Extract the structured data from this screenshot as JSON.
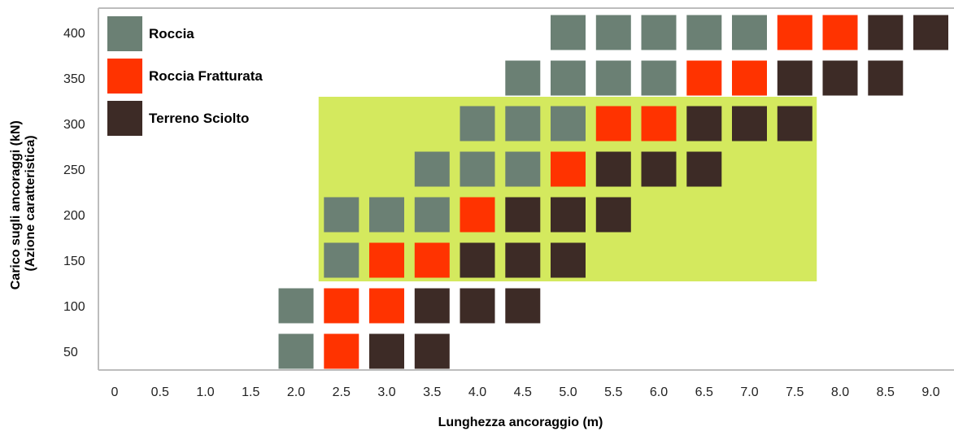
{
  "chart_data": {
    "type": "heatmap",
    "xlabel": "Lunghezza ancoraggio (m)",
    "ylabel_lines": [
      "Carico sugli ancoraggi (kN)",
      "(Azione caratteristica)"
    ],
    "x_ticks": [
      "0",
      "0.5",
      "1.0",
      "1.5",
      "2.0",
      "2.5",
      "3.0",
      "3.5",
      "4.0",
      "4.5",
      "5.0",
      "5.5",
      "6.0",
      "6.5",
      "7.0",
      "7.5",
      "8.0",
      "8.5",
      "9.0"
    ],
    "y_ticks": [
      "400",
      "350",
      "300",
      "250",
      "200",
      "150",
      "100",
      "50"
    ],
    "categories": {
      "R": {
        "label": "Roccia",
        "color": "#6b8074"
      },
      "F": {
        "label": "Roccia Fratturata",
        "color": "#ff3300"
      },
      "T": {
        "label": "Terreno Sciolto",
        "color": "#3d2b26"
      }
    },
    "legend_order": [
      "R",
      "F",
      "T"
    ],
    "legend_position": "top-left",
    "highlight_region": {
      "color": "#d4e95e",
      "x_range": [
        2.5,
        7.5
      ],
      "y_range": [
        150,
        300
      ]
    },
    "cells": [
      {
        "load": 400,
        "start_length": 5.0,
        "categories": [
          "R",
          "R",
          "R",
          "R",
          "R",
          "F",
          "F",
          "T",
          "T"
        ]
      },
      {
        "load": 350,
        "start_length": 4.5,
        "categories": [
          "R",
          "R",
          "R",
          "R",
          "F",
          "F",
          "T",
          "T",
          "T"
        ]
      },
      {
        "load": 300,
        "start_length": 4.0,
        "categories": [
          "R",
          "R",
          "R",
          "F",
          "F",
          "T",
          "T",
          "T"
        ]
      },
      {
        "load": 250,
        "start_length": 3.5,
        "categories": [
          "R",
          "R",
          "R",
          "F",
          "T",
          "T",
          "T"
        ]
      },
      {
        "load": 200,
        "start_length": 2.5,
        "categories": [
          "R",
          "R",
          "R",
          "F",
          "T",
          "T",
          "T"
        ]
      },
      {
        "load": 150,
        "start_length": 2.5,
        "categories": [
          "R",
          "F",
          "F",
          "T",
          "T",
          "T"
        ]
      },
      {
        "load": 100,
        "start_length": 2.0,
        "categories": [
          "R",
          "F",
          "F",
          "T",
          "T",
          "T"
        ]
      },
      {
        "load": 50,
        "start_length": 2.0,
        "categories": [
          "R",
          "F",
          "T",
          "T"
        ]
      }
    ]
  }
}
